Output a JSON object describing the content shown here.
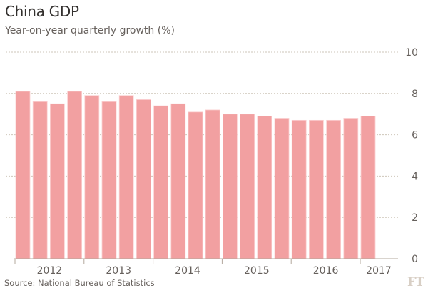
{
  "header": {
    "title": "China GDP",
    "subtitle": "Year-on-year quarterly growth (%)"
  },
  "footer": {
    "source": "Source: National Bureau of Statistics",
    "logo": "FT"
  },
  "colors": {
    "bar": "#f2a0a1",
    "bar_edge": "#fbd0d1",
    "grid": "#cec6b9",
    "axis": "#b3a89d",
    "text": "#66605c"
  },
  "chart_data": {
    "type": "bar",
    "title": "China GDP",
    "subtitle": "Year-on-year quarterly growth (%)",
    "xlabel": "",
    "ylabel": "",
    "categories": [
      "2012 Q1",
      "2012 Q2",
      "2012 Q3",
      "2012 Q4",
      "2013 Q1",
      "2013 Q2",
      "2013 Q3",
      "2013 Q4",
      "2014 Q1",
      "2014 Q2",
      "2014 Q3",
      "2014 Q4",
      "2015 Q1",
      "2015 Q2",
      "2015 Q3",
      "2015 Q4",
      "2016 Q1",
      "2016 Q2",
      "2016 Q3",
      "2016 Q4",
      "2017 Q1"
    ],
    "values": [
      8.1,
      7.6,
      7.5,
      8.1,
      7.9,
      7.6,
      7.9,
      7.7,
      7.4,
      7.5,
      7.1,
      7.2,
      7.0,
      7.0,
      6.9,
      6.8,
      6.7,
      6.7,
      6.7,
      6.8,
      6.9
    ],
    "ylim": [
      0,
      10
    ],
    "yticks": [
      0,
      2,
      4,
      6,
      8,
      10
    ],
    "ytick_labels": [
      "0",
      "2",
      "4",
      "6",
      "8",
      "10"
    ],
    "xtick_labels": [
      "2012",
      "2013",
      "2014",
      "2015",
      "2016",
      "2017"
    ],
    "grid": true,
    "y_axis_side": "right",
    "source": "Source: National Bureau of Statistics"
  }
}
